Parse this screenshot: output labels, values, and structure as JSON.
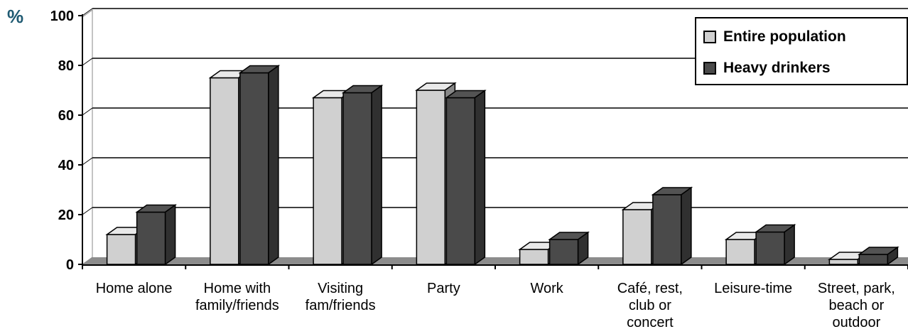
{
  "unit_label": "%",
  "chart_data": {
    "type": "bar",
    "categories": [
      [
        "Home alone"
      ],
      [
        "Home with",
        "family/friends"
      ],
      [
        "Visiting",
        "fam/friends"
      ],
      [
        "Party"
      ],
      [
        "Work"
      ],
      [
        "Café, rest,",
        "club or",
        "concert"
      ],
      [
        "Leisure-time"
      ],
      [
        "Street, park,",
        "beach or",
        "outdoor"
      ]
    ],
    "series": [
      {
        "name": "Entire population",
        "color": "#d0d0d0",
        "values": [
          12,
          75,
          67,
          70,
          6,
          22,
          10,
          2
        ]
      },
      {
        "name": "Heavy drinkers",
        "color": "#4a4a4a",
        "values": [
          21,
          77,
          69,
          67,
          10,
          28,
          13,
          4
        ]
      }
    ],
    "ylim": [
      0,
      100
    ],
    "yticks": [
      0,
      20,
      40,
      60,
      80,
      100
    ],
    "grid": true,
    "legend_position": "top-right"
  }
}
